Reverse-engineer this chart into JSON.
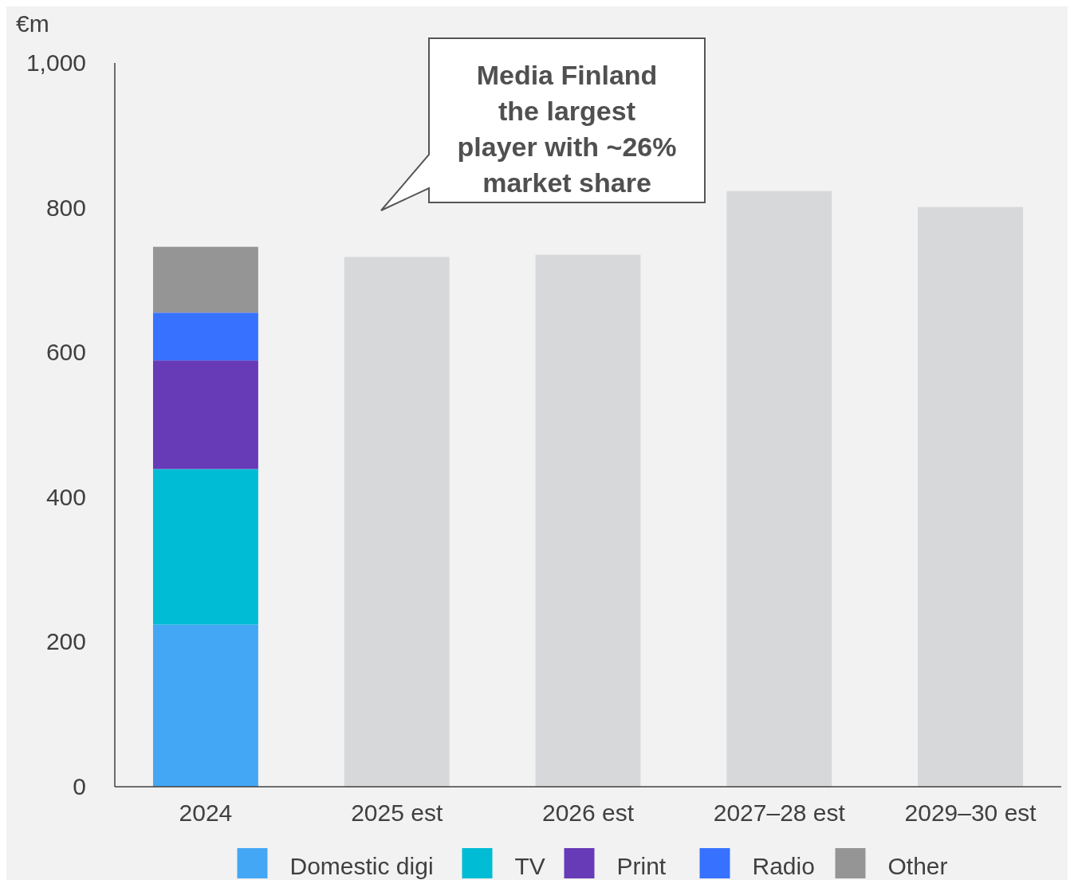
{
  "chart_data": {
    "type": "bar",
    "stacked": true,
    "ylabel": "€m",
    "categories": [
      "2024",
      "2025 est",
      "2026 est",
      "2027–28 est",
      "2029–30 est"
    ],
    "series": [
      {
        "name": "Domestic digi",
        "color": "#44a7f5",
        "values": [
          224,
          null,
          null,
          null,
          null
        ]
      },
      {
        "name": "TV",
        "color": "#00bcd4",
        "values": [
          215,
          null,
          null,
          null,
          null
        ]
      },
      {
        "name": "Print",
        "color": "#673ab7",
        "values": [
          150,
          null,
          null,
          null,
          null
        ]
      },
      {
        "name": "Radio",
        "color": "#3672ff",
        "values": [
          66,
          null,
          null,
          null,
          null
        ]
      },
      {
        "name": "Other",
        "color": "#959595",
        "values": [
          91,
          null,
          null,
          null,
          null
        ]
      },
      {
        "color": "#d7d8da",
        "values": [
          null,
          732,
          735,
          823,
          801
        ]
      }
    ],
    "ylim": [
      0,
      1000
    ],
    "yticks": [
      0,
      200,
      400,
      600,
      800,
      {
        "value": 1000,
        "label": "1,000"
      }
    ],
    "grid": false,
    "legend": "bottom",
    "annotations": [
      "Media Finland the largest player with ~26% market share"
    ]
  }
}
